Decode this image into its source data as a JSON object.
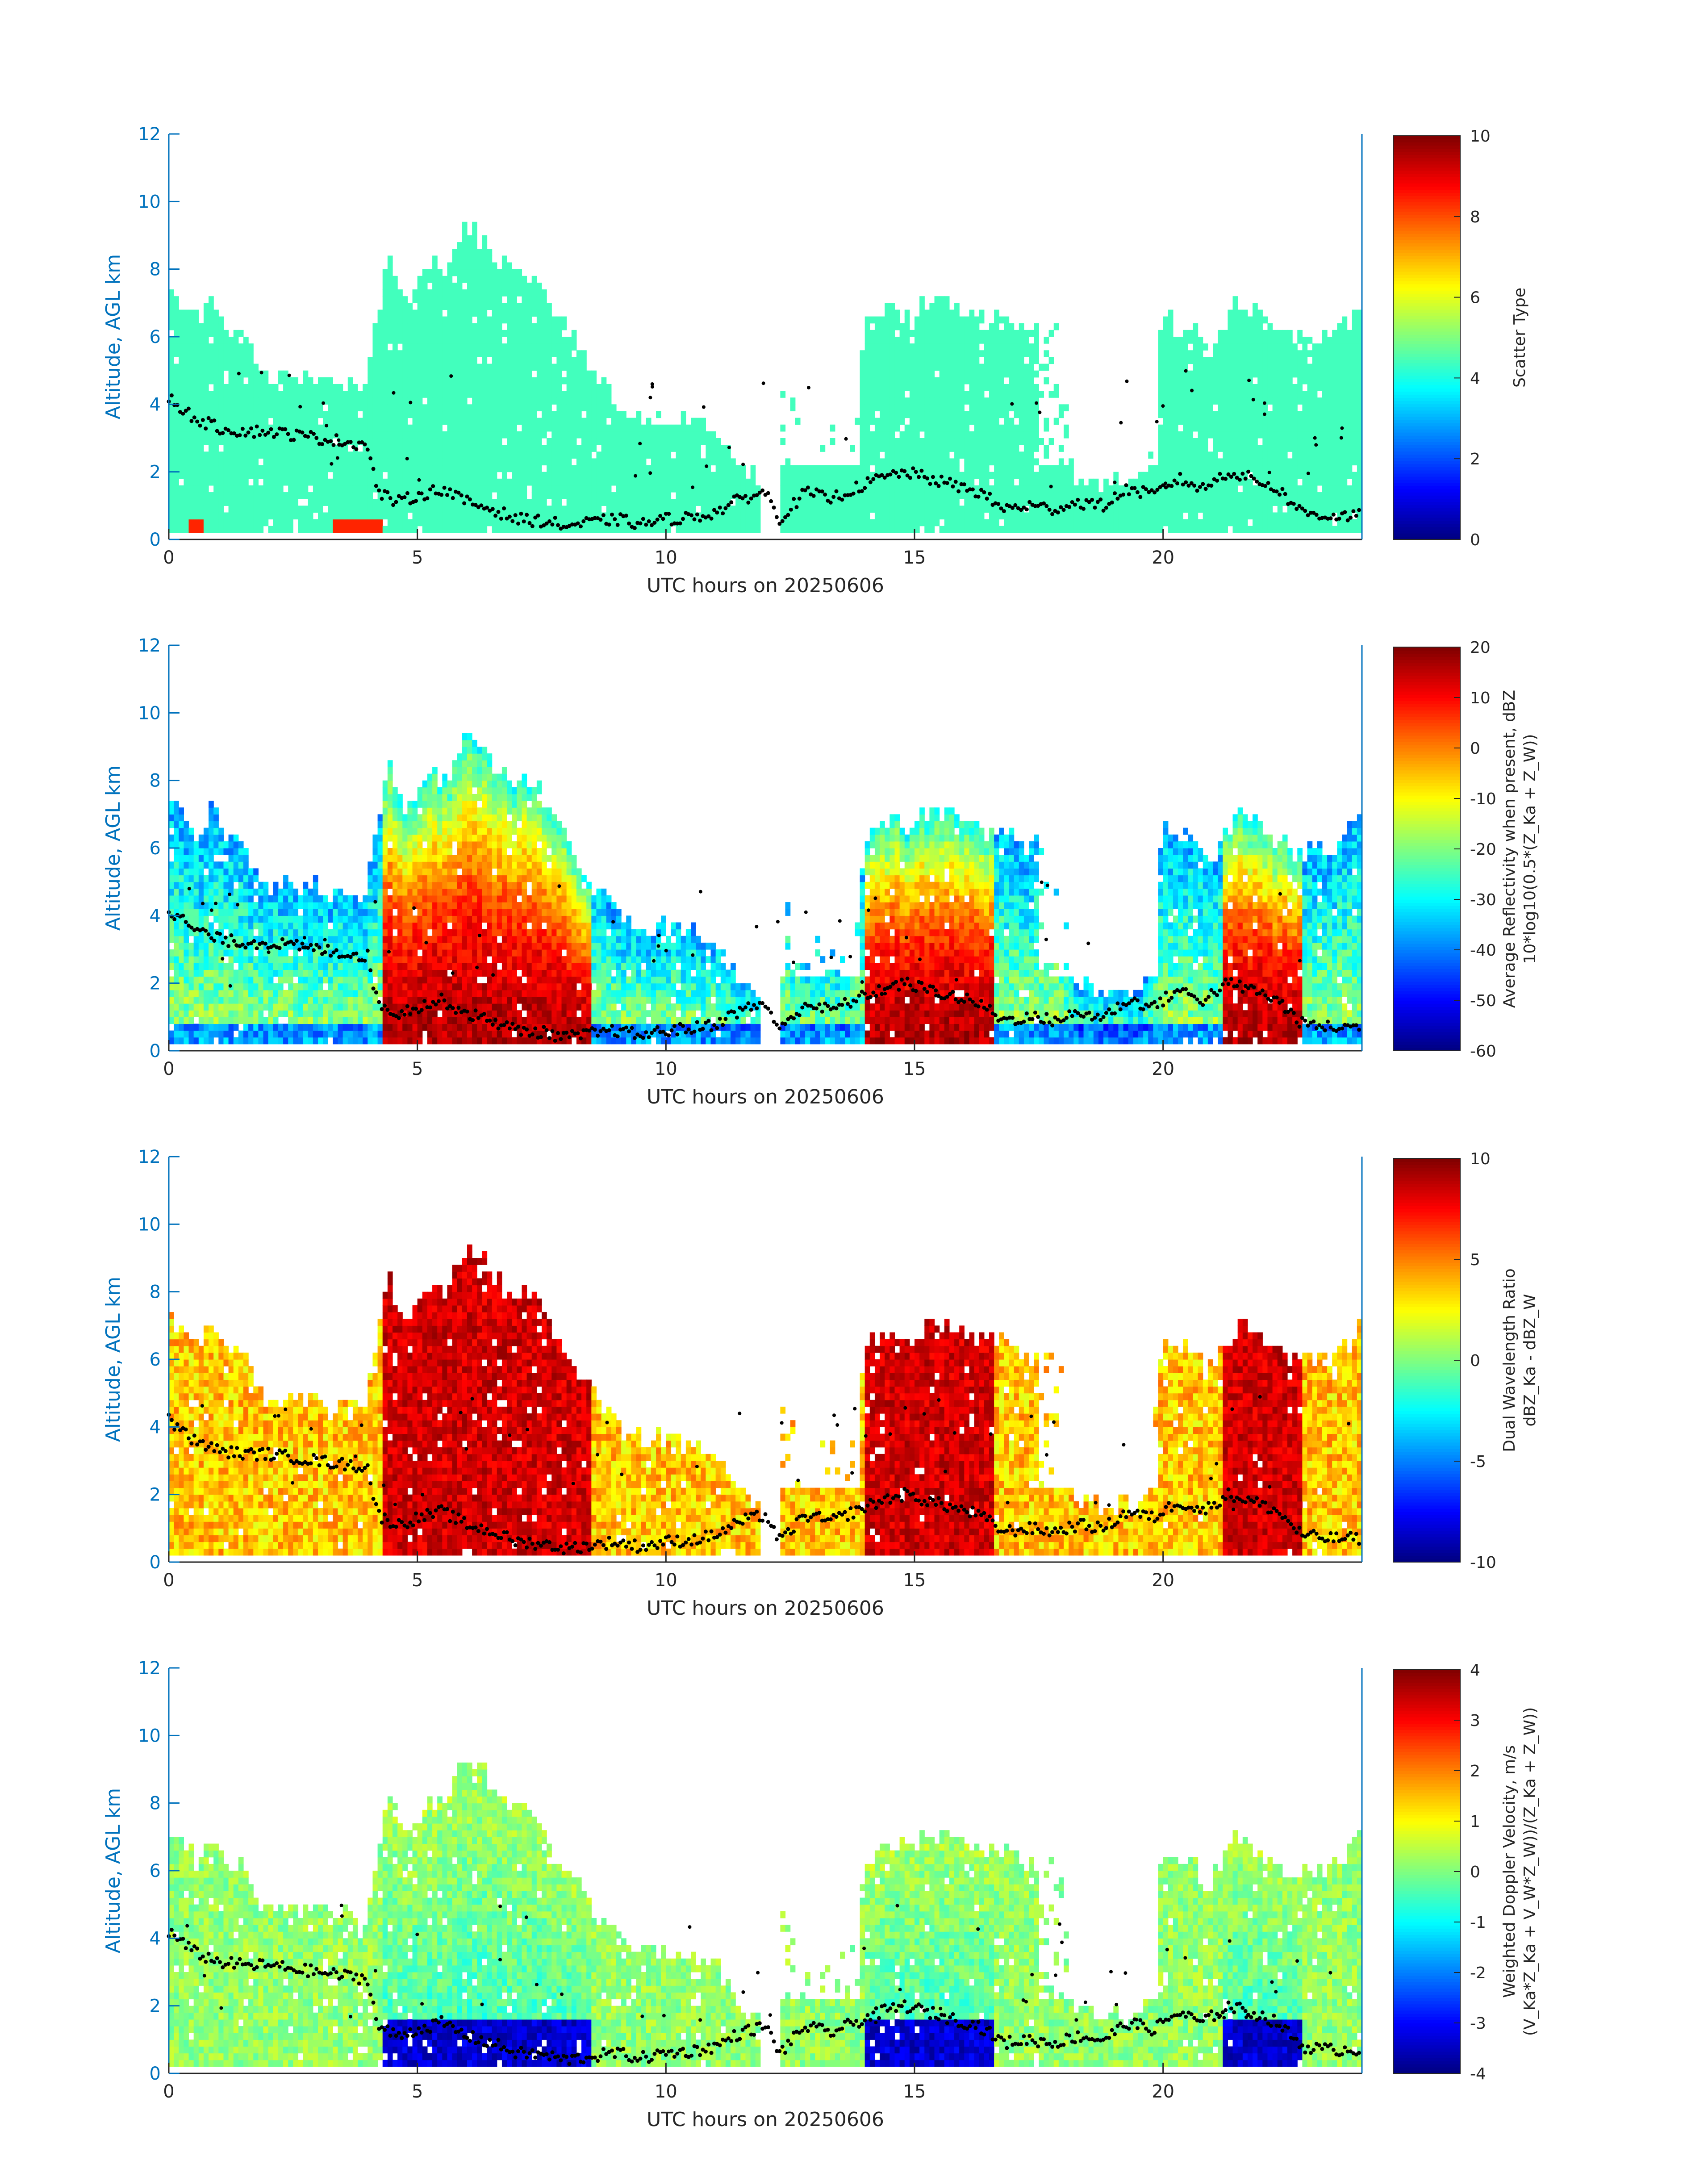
{
  "figure": {
    "xlabel": "UTC hours on 20250606",
    "ylabel": "Altitude, AGL km",
    "x_ticks": [
      0,
      5,
      10,
      15,
      20
    ],
    "y_ticks": [
      0,
      2,
      4,
      6,
      8,
      10,
      12
    ],
    "xlim": [
      0,
      24
    ],
    "ylim": [
      0,
      12
    ],
    "axis_color": "#0072BD",
    "overlay_color": "#000000",
    "empty_color": "#ffffff"
  },
  "chart_data": [
    {
      "type": "heatmap",
      "colormap": "jet",
      "colorbar_label_lines": [
        "Scatter Type"
      ],
      "clim": [
        0,
        10
      ],
      "colorbar_ticks": [
        0,
        2,
        4,
        6,
        8,
        10
      ],
      "dominant_value": 4.4,
      "secondary_value": 8.4
    },
    {
      "type": "heatmap",
      "colormap": "jet",
      "colorbar_label_lines": [
        "Average Reflectivity when present, dBZ",
        "10*log10(0.5*(Z_Ka + Z_W))"
      ],
      "clim": [
        -60,
        20
      ],
      "colorbar_ticks": [
        -60,
        -50,
        -40,
        -30,
        -20,
        -10,
        0,
        10,
        20
      ]
    },
    {
      "type": "heatmap",
      "colormap": "jet",
      "colorbar_label_lines": [
        "Dual Wavelength Ratio",
        "dBZ_Ka - dBZ_W"
      ],
      "clim": [
        -10,
        10
      ],
      "colorbar_ticks": [
        -10,
        -5,
        0,
        5,
        10
      ]
    },
    {
      "type": "heatmap",
      "colormap": "jet",
      "colorbar_label_lines": [
        "Weighted Doppler Velocity, m/s",
        "(V_Ka*Z_Ka + V_W*Z_W))/(Z_Ka + Z_W))"
      ],
      "clim": [
        -4,
        4
      ],
      "colorbar_ticks": [
        -4,
        -3,
        -2,
        -1,
        0,
        1,
        2,
        3,
        4
      ]
    }
  ],
  "cloud_top_km": [
    [
      0.0,
      7.3
    ],
    [
      0.3,
      6.8
    ],
    [
      0.6,
      6.5
    ],
    [
      0.9,
      7.2
    ],
    [
      1.2,
      6.0
    ],
    [
      1.5,
      6.2
    ],
    [
      1.8,
      5.0
    ],
    [
      2.1,
      4.8
    ],
    [
      2.4,
      4.9
    ],
    [
      2.7,
      4.7
    ],
    [
      3.0,
      4.9
    ],
    [
      3.3,
      4.5
    ],
    [
      3.6,
      4.8
    ],
    [
      3.9,
      4.2
    ],
    [
      4.2,
      6.5
    ],
    [
      4.4,
      8.6
    ],
    [
      4.7,
      7.0
    ],
    [
      5.0,
      7.5
    ],
    [
      5.3,
      8.2
    ],
    [
      5.6,
      8.0
    ],
    [
      5.9,
      9.2
    ],
    [
      6.2,
      9.2
    ],
    [
      6.5,
      8.6
    ],
    [
      6.8,
      8.0
    ],
    [
      7.1,
      8.0
    ],
    [
      7.4,
      7.8
    ],
    [
      7.7,
      6.8
    ],
    [
      8.0,
      6.3
    ],
    [
      8.3,
      5.5
    ],
    [
      8.6,
      4.8
    ],
    [
      8.9,
      4.5
    ],
    [
      9.2,
      3.8
    ],
    [
      9.5,
      3.6
    ],
    [
      9.8,
      3.7
    ],
    [
      10.1,
      3.6
    ],
    [
      10.4,
      3.5
    ],
    [
      10.7,
      3.4
    ],
    [
      11.0,
      3.3
    ],
    [
      11.3,
      2.6
    ],
    [
      11.6,
      2.0
    ],
    [
      11.9,
      1.8
    ],
    [
      12.2,
      5.0
    ],
    [
      12.5,
      4.8
    ],
    [
      12.8,
      2.8
    ],
    [
      13.1,
      3.6
    ],
    [
      13.4,
      3.5
    ],
    [
      13.7,
      3.3
    ],
    [
      14.0,
      6.2
    ],
    [
      14.3,
      6.8
    ],
    [
      14.6,
      6.9
    ],
    [
      14.9,
      6.5
    ],
    [
      15.2,
      6.9
    ],
    [
      15.5,
      7.1
    ],
    [
      15.8,
      7.0
    ],
    [
      16.1,
      6.8
    ],
    [
      16.4,
      6.5
    ],
    [
      16.7,
      6.6
    ],
    [
      17.0,
      6.4
    ],
    [
      17.3,
      6.0
    ],
    [
      17.6,
      6.4
    ],
    [
      17.9,
      6.7
    ],
    [
      18.2,
      1.8
    ],
    [
      18.5,
      2.0
    ],
    [
      18.8,
      1.5
    ],
    [
      19.1,
      1.8
    ],
    [
      19.4,
      1.6
    ],
    [
      19.7,
      2.0
    ],
    [
      20.0,
      6.8
    ],
    [
      20.3,
      6.2
    ],
    [
      20.6,
      6.5
    ],
    [
      20.9,
      5.5
    ],
    [
      21.2,
      6.3
    ],
    [
      21.5,
      7.0
    ],
    [
      21.8,
      6.8
    ],
    [
      22.1,
      6.5
    ],
    [
      22.4,
      6.2
    ],
    [
      22.7,
      5.8
    ],
    [
      23.0,
      6.0
    ],
    [
      23.3,
      6.0
    ],
    [
      23.6,
      6.2
    ],
    [
      23.9,
      6.8
    ],
    [
      24.0,
      7.2
    ]
  ],
  "overlay_layer_km": [
    [
      0.0,
      4.2
    ],
    [
      0.5,
      3.6
    ],
    [
      1.0,
      3.3
    ],
    [
      1.5,
      3.2
    ],
    [
      2.0,
      3.2
    ],
    [
      2.5,
      3.1
    ],
    [
      3.0,
      3.0
    ],
    [
      3.5,
      2.9
    ],
    [
      4.0,
      2.8
    ],
    [
      4.2,
      1.4
    ],
    [
      4.6,
      1.1
    ],
    [
      5.0,
      1.3
    ],
    [
      5.5,
      1.5
    ],
    [
      6.0,
      1.1
    ],
    [
      6.5,
      0.9
    ],
    [
      7.0,
      0.6
    ],
    [
      7.5,
      0.55
    ],
    [
      8.0,
      0.4
    ],
    [
      8.5,
      0.5
    ],
    [
      9.0,
      0.6
    ],
    [
      9.5,
      0.45
    ],
    [
      10.0,
      0.6
    ],
    [
      10.5,
      0.65
    ],
    [
      11.0,
      0.8
    ],
    [
      11.5,
      1.2
    ],
    [
      12.0,
      1.4
    ],
    [
      12.3,
      0.6
    ],
    [
      12.8,
      1.4
    ],
    [
      13.3,
      1.2
    ],
    [
      13.8,
      1.5
    ],
    [
      14.3,
      1.8
    ],
    [
      14.8,
      2.0
    ],
    [
      15.3,
      1.8
    ],
    [
      15.8,
      1.6
    ],
    [
      16.3,
      1.4
    ],
    [
      16.8,
      0.9
    ],
    [
      17.3,
      1.0
    ],
    [
      17.8,
      0.9
    ],
    [
      18.3,
      1.1
    ],
    [
      18.8,
      1.0
    ],
    [
      19.3,
      1.5
    ],
    [
      19.8,
      1.3
    ],
    [
      20.3,
      1.8
    ],
    [
      20.8,
      1.5
    ],
    [
      21.3,
      2.0
    ],
    [
      21.8,
      1.8
    ],
    [
      22.3,
      1.5
    ],
    [
      22.8,
      0.8
    ],
    [
      23.3,
      0.7
    ],
    [
      24.0,
      0.7
    ]
  ]
}
